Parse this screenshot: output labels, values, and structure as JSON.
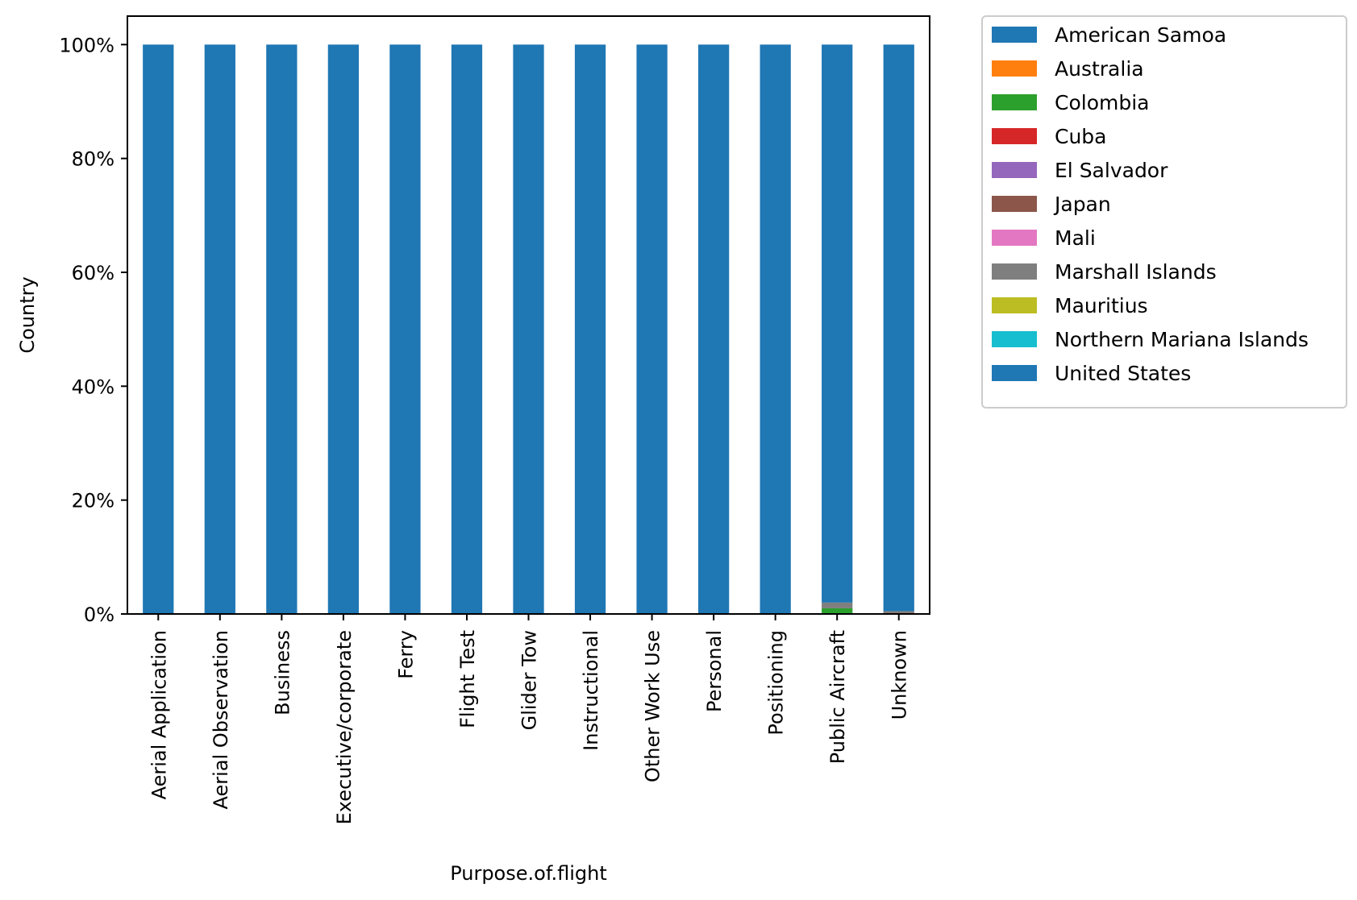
{
  "chart_data": {
    "type": "bar",
    "stacked": true,
    "title": "",
    "xlabel": "Purpose.of.flight",
    "ylabel": "Country",
    "ylim": [
      0,
      1.05
    ],
    "yticks": [
      0,
      0.2,
      0.4,
      0.6,
      0.8,
      1.0
    ],
    "ytick_labels": [
      "0%",
      "20%",
      "40%",
      "60%",
      "80%",
      "100%"
    ],
    "grid": false,
    "legend_position": "outside-top-right",
    "categories": [
      "Aerial Application",
      "Aerial Observation",
      "Business",
      "Executive/corporate",
      "Ferry",
      "Flight Test",
      "Glider Tow",
      "Instructional",
      "Other Work Use",
      "Personal",
      "Positioning",
      "Public Aircraft",
      "Unknown"
    ],
    "series": [
      {
        "name": "American Samoa",
        "color": "#1f77b4",
        "values": [
          0,
          0,
          0,
          0,
          0,
          0,
          0,
          0,
          0,
          0,
          0,
          0,
          0
        ]
      },
      {
        "name": "Australia",
        "color": "#ff7f0e",
        "values": [
          0,
          0,
          0,
          0,
          0,
          0,
          0,
          0,
          0,
          0,
          0,
          0,
          0
        ]
      },
      {
        "name": "Colombia",
        "color": "#2ca02c",
        "values": [
          0,
          0,
          0,
          0,
          0,
          0,
          0,
          0,
          0,
          0,
          0,
          0.01,
          0
        ]
      },
      {
        "name": "Cuba",
        "color": "#d62728",
        "values": [
          0,
          0,
          0,
          0,
          0,
          0,
          0,
          0,
          0,
          0,
          0,
          0,
          0
        ]
      },
      {
        "name": "El Salvador",
        "color": "#9467bd",
        "values": [
          0,
          0,
          0,
          0,
          0,
          0,
          0,
          0,
          0,
          0,
          0,
          0,
          0
        ]
      },
      {
        "name": "Japan",
        "color": "#8c564b",
        "values": [
          0,
          0,
          0,
          0,
          0,
          0,
          0,
          0,
          0,
          0,
          0,
          0,
          0.002
        ]
      },
      {
        "name": "Mali",
        "color": "#e377c2",
        "values": [
          0,
          0,
          0,
          0,
          0,
          0,
          0,
          0,
          0,
          0,
          0,
          0,
          0
        ]
      },
      {
        "name": "Marshall Islands",
        "color": "#7f7f7f",
        "values": [
          0,
          0,
          0,
          0,
          0,
          0,
          0,
          0,
          0,
          0,
          0,
          0.01,
          0.003
        ]
      },
      {
        "name": "Mauritius",
        "color": "#bcbd22",
        "values": [
          0,
          0,
          0,
          0,
          0,
          0,
          0,
          0,
          0,
          0,
          0,
          0,
          0
        ]
      },
      {
        "name": "Northern Mariana Islands",
        "color": "#17becf",
        "values": [
          0,
          0,
          0,
          0,
          0,
          0,
          0,
          0,
          0,
          0,
          0,
          0,
          0
        ]
      },
      {
        "name": "United States",
        "color": "#1f77b4",
        "values": [
          1,
          1,
          1,
          1,
          1,
          1,
          1,
          1,
          1,
          1,
          1,
          0.98,
          0.995
        ]
      }
    ]
  }
}
